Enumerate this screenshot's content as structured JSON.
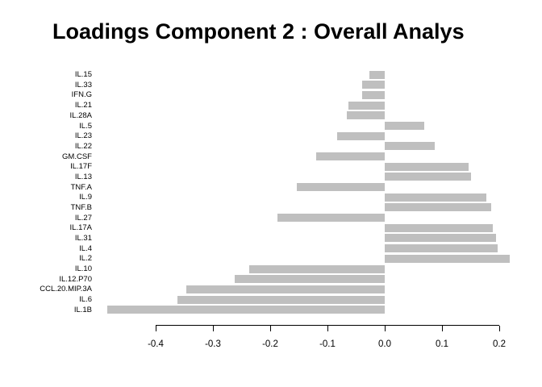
{
  "title": "Loadings Component 2 : Overall Analys",
  "colors": {
    "bar": "#bfbfbf",
    "axis": "#000000",
    "background": "#ffffff",
    "text": "#000000"
  },
  "chart_data": {
    "type": "bar",
    "orientation": "horizontal",
    "title": "Loadings Component 2 : Overall Analys",
    "categories": [
      "IL.15",
      "IL.33",
      "IFN.G",
      "IL.21",
      "IL.28A",
      "IL.5",
      "IL.23",
      "IL.22",
      "GM.CSF",
      "IL.17F",
      "IL.13",
      "TNF.A",
      "IL.9",
      "TNF.B",
      "IL.27",
      "IL.17A",
      "IL.31",
      "IL.4",
      "IL.2",
      "IL.10",
      "IL.12.P70",
      "CCL.20.MIP.3A",
      "IL.6",
      "IL.1B"
    ],
    "values": [
      -0.027,
      -0.039,
      -0.04,
      -0.064,
      -0.066,
      0.069,
      -0.083,
      0.087,
      -0.12,
      0.147,
      0.15,
      -0.154,
      0.177,
      0.186,
      -0.187,
      0.189,
      0.194,
      0.197,
      0.219,
      -0.236,
      -0.262,
      -0.346,
      -0.362,
      -0.484
    ],
    "xlabel": "",
    "ylabel": "",
    "xlim": [
      -0.4,
      0.2
    ],
    "xticks": [
      -0.4,
      -0.3,
      -0.2,
      -0.1,
      0.0,
      0.1,
      0.2
    ],
    "xtick_labels": [
      "-0.4",
      "-0.3",
      "-0.2",
      "-0.1",
      "0.0",
      "0.1",
      "0.2"
    ],
    "bar_color": "#bfbfbf",
    "grid": false,
    "legend": false
  }
}
